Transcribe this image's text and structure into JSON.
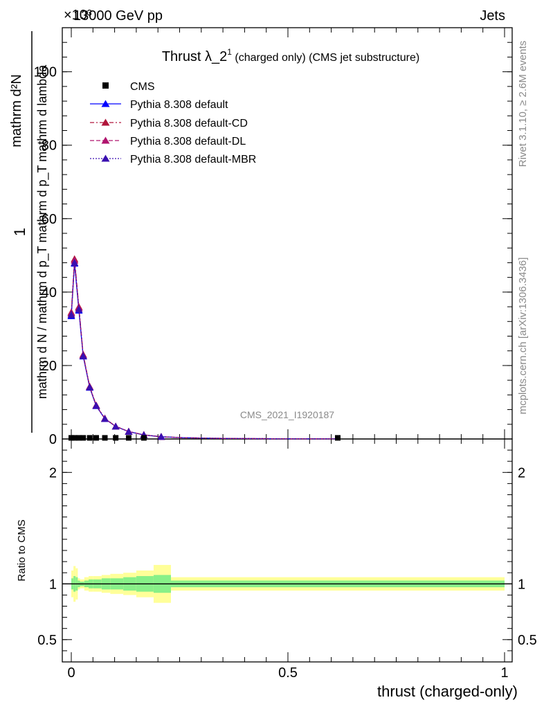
{
  "header": {
    "energy_label": "13000 GeV pp",
    "process_label": "Jets",
    "exponent_label": "×10³"
  },
  "side_labels": {
    "rivet": "Rivet 3.1.10, ≥ 2.6M events",
    "mcplots": "mcplots.cern.ch [arXiv:1306.3436]"
  },
  "watermark": "CMS_2021_I1920187",
  "chart_data": [
    {
      "type": "line",
      "title_main": "Thrust λ_2",
      "title_sup": "1",
      "title_suffix": " (charged only) (CMS jet substructure)",
      "ylabel_top": "1",
      "ylabel_bottom": "mathrm d N / mathrm d p_T mathrm d p_T mathrm d lambda",
      "ylabel_numerator": "mathrm d²N",
      "ylim": [
        0,
        112000
      ],
      "y_ticks": [
        0,
        20000,
        40000,
        60000,
        80000,
        100000
      ],
      "y_tick_labels": [
        "0",
        "20",
        "40",
        "60",
        "80",
        "100"
      ],
      "xlim": [
        -0.02,
        1.0
      ],
      "x": [
        0.0,
        0.0075,
        0.0175,
        0.0275,
        0.0425,
        0.0575,
        0.0775,
        0.1025,
        0.1325,
        0.1675,
        0.2075,
        0.2575,
        0.3175,
        0.3875,
        0.4675,
        0.5575,
        0.615
      ],
      "cms_x": [
        0.0,
        0.0075,
        0.0175,
        0.0275,
        0.0425,
        0.0575,
        0.0775,
        0.1025,
        0.1325,
        0.1675,
        0.615
      ],
      "cms_y": [
        300,
        300,
        300,
        300,
        300,
        300,
        300,
        300,
        300,
        300,
        300
      ],
      "legend": [
        "CMS",
        "Pythia 8.308 default",
        "Pythia 8.308 default-CD",
        "Pythia 8.308 default-DL",
        "Pythia 8.308 default-MBR"
      ],
      "series": [
        {
          "name": "Pythia 8.308 default",
          "color": "#0000ff",
          "dash": "",
          "values": [
            33500,
            47800,
            35000,
            22500,
            14000,
            9000,
            5500,
            3400,
            2000,
            1100,
            600,
            350,
            200,
            120,
            70,
            40,
            25
          ]
        },
        {
          "name": "Pythia 8.308 default-CD",
          "color": "#b0153a",
          "dash": "6,3,2,3",
          "values": [
            34500,
            49000,
            36000,
            23000,
            14300,
            9200,
            5600,
            3450,
            2050,
            1120,
            610,
            355,
            205,
            122,
            71,
            41,
            26
          ]
        },
        {
          "name": "Pythia 8.308 default-DL",
          "color": "#b0146e",
          "dash": "6,3",
          "values": [
            34200,
            48600,
            35700,
            22800,
            14200,
            9100,
            5550,
            3420,
            2030,
            1110,
            605,
            352,
            203,
            121,
            70,
            40,
            25
          ]
        },
        {
          "name": "Pythia 8.308 default-MBR",
          "color": "#3a0fb0",
          "dash": "2,2",
          "values": [
            33800,
            48000,
            35300,
            22600,
            14100,
            9050,
            5520,
            3410,
            2010,
            1100,
            602,
            351,
            201,
            120,
            70,
            40,
            25
          ]
        }
      ]
    },
    {
      "type": "area",
      "ylabel": "Ratio to CMS",
      "xlabel": "thrust (charged-only)",
      "ylim": [
        0.3,
        2.3
      ],
      "y_ticks": [
        0.5,
        1,
        2
      ],
      "y_tick_labels": [
        "0.5",
        "1",
        "2"
      ],
      "x_ticks": [
        0,
        0.5,
        1
      ],
      "x_tick_labels": [
        "0",
        "0.5",
        "1"
      ],
      "bin_edges": [
        0.0,
        0.005,
        0.01,
        0.015,
        0.02,
        0.03,
        0.04,
        0.05,
        0.07,
        0.09,
        0.12,
        0.15,
        0.19,
        0.23,
        1.0
      ],
      "green_halfwidth": [
        0.05,
        0.07,
        0.06,
        0.03,
        0.02,
        0.03,
        0.04,
        0.04,
        0.05,
        0.05,
        0.06,
        0.07,
        0.08,
        0.03
      ],
      "yellow_halfwidth": [
        0.12,
        0.16,
        0.14,
        0.05,
        0.04,
        0.06,
        0.07,
        0.07,
        0.08,
        0.09,
        0.1,
        0.12,
        0.17,
        0.06
      ],
      "band_colors": {
        "green": "#88f088",
        "yellow": "#ffff99"
      }
    }
  ]
}
